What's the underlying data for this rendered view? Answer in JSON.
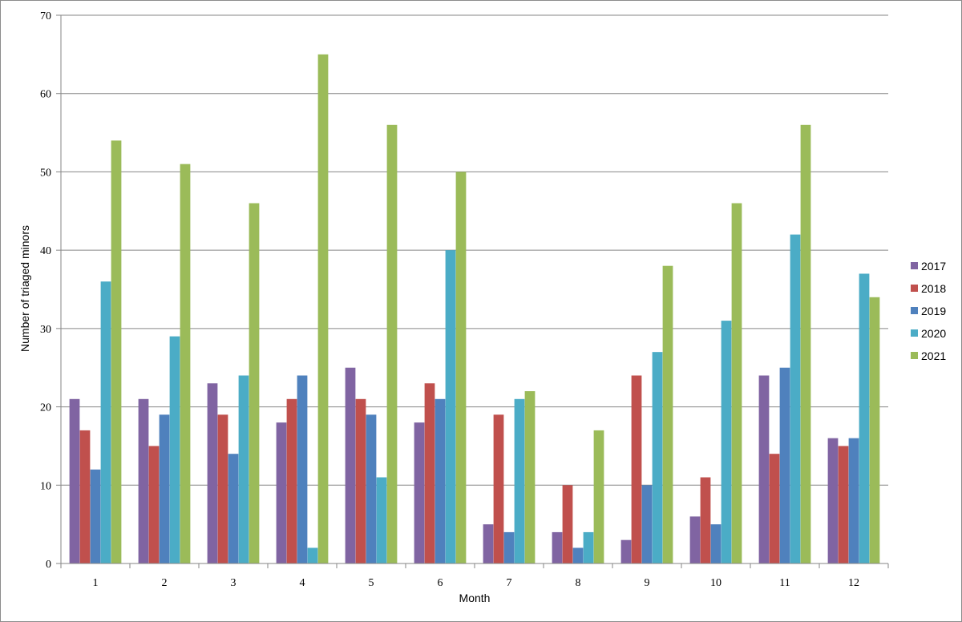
{
  "chart_data": {
    "type": "bar",
    "title": "",
    "xlabel": "Month",
    "ylabel": "Number of triaged minors",
    "ylim": [
      0,
      70
    ],
    "yticks": [
      0,
      10,
      20,
      30,
      40,
      50,
      60,
      70
    ],
    "grid": true,
    "legend": "right",
    "categories": [
      "1",
      "2",
      "3",
      "4",
      "5",
      "6",
      "7",
      "8",
      "9",
      "10",
      "11",
      "12"
    ],
    "series": [
      {
        "name": "2017",
        "color": "#8064a2",
        "values": [
          21,
          21,
          23,
          18,
          25,
          18,
          5,
          4,
          3,
          6,
          24,
          16
        ]
      },
      {
        "name": "2018",
        "color": "#c0504d",
        "values": [
          17,
          15,
          19,
          21,
          21,
          23,
          19,
          10,
          24,
          11,
          14,
          15
        ]
      },
      {
        "name": "2019",
        "color": "#4f81bd",
        "values": [
          12,
          19,
          14,
          24,
          19,
          21,
          4,
          2,
          10,
          5,
          25,
          16
        ]
      },
      {
        "name": "2020",
        "color": "#4bacc6",
        "values": [
          36,
          29,
          24,
          2,
          11,
          40,
          21,
          4,
          27,
          31,
          42,
          37
        ]
      },
      {
        "name": "2021",
        "color": "#9bbb59",
        "values": [
          54,
          51,
          46,
          65,
          56,
          50,
          22,
          17,
          38,
          46,
          56,
          34
        ]
      }
    ]
  }
}
